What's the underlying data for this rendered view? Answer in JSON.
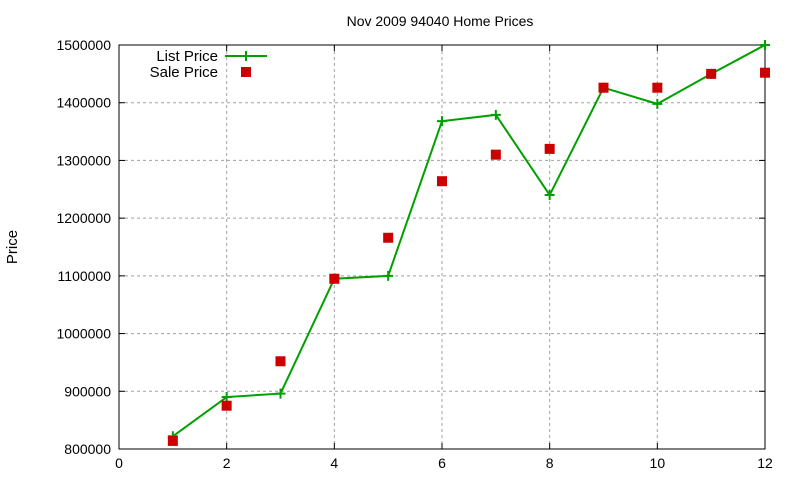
{
  "chart_data": {
    "type": "line",
    "title": "Nov 2009 94040 Home Prices",
    "xlabel": "",
    "ylabel": "Price",
    "xlim": [
      0,
      12
    ],
    "ylim": [
      800000,
      1500000
    ],
    "xticks": [
      0,
      2,
      4,
      6,
      8,
      10,
      12
    ],
    "yticks": [
      800000,
      900000,
      1000000,
      1100000,
      1200000,
      1300000,
      1400000,
      1500000
    ],
    "grid": true,
    "legend_position": "top-left",
    "x": [
      1,
      2,
      3,
      4,
      5,
      6,
      7,
      8,
      9,
      10,
      11,
      12
    ],
    "series": [
      {
        "name": "List Price",
        "style": "linespoints",
        "marker": "plus",
        "color": "#00a000",
        "values": [
          822000,
          890000,
          896000,
          1095000,
          1100000,
          1368000,
          1379000,
          1240000,
          1426000,
          1398000,
          1450000,
          1500000
        ]
      },
      {
        "name": "Sale Price",
        "style": "points",
        "marker": "square",
        "color": "#cc0000",
        "values": [
          814000,
          875000,
          952000,
          1095000,
          1166000,
          1264000,
          1310000,
          1320000,
          1426000,
          1426000,
          1450000,
          1452000
        ]
      }
    ]
  }
}
